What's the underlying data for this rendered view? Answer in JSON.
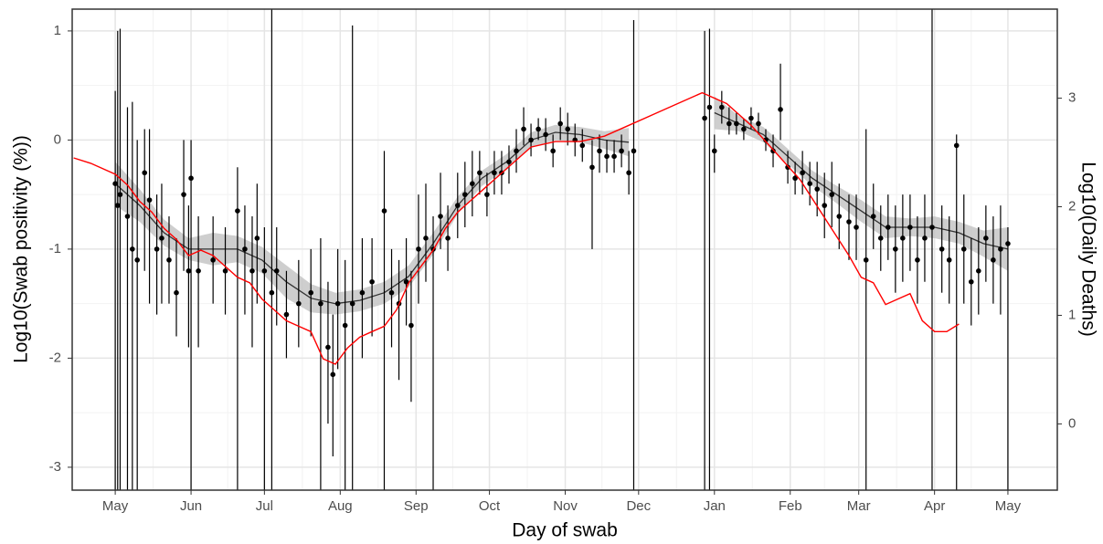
{
  "chart_data": {
    "type": "scatter",
    "x_label": "Day of swab",
    "y_label": "Log10(Swab positivity (%))",
    "y2_label": "Log10(Daily Deaths)",
    "xlim": [
      -17.6,
      385.2
    ],
    "ylim": [
      -3.21,
      1.2
    ],
    "y2lim": [
      -0.61,
      3.82
    ],
    "xticks": [
      {
        "value": 0,
        "label": "May"
      },
      {
        "value": 31,
        "label": "Jun"
      },
      {
        "value": 61,
        "label": "Jul"
      },
      {
        "value": 92,
        "label": "Aug"
      },
      {
        "value": 123,
        "label": "Sep"
      },
      {
        "value": 153,
        "label": "Oct"
      },
      {
        "value": 184,
        "label": "Nov"
      },
      {
        "value": 214,
        "label": "Dec"
      },
      {
        "value": 245,
        "label": "Jan"
      },
      {
        "value": 276,
        "label": "Feb"
      },
      {
        "value": 304,
        "label": "Mar"
      },
      {
        "value": 335,
        "label": "Apr"
      },
      {
        "value": 365,
        "label": "May"
      }
    ],
    "yticks": [
      -3,
      -2,
      -1,
      0,
      1
    ],
    "y2ticks": [
      0,
      1,
      2,
      3
    ],
    "grid": true,
    "series": [
      {
        "type": "errorbar",
        "color": "#000000",
        "x": [
          0,
          1,
          2,
          5,
          7,
          9,
          12,
          14,
          17,
          19,
          22,
          25,
          28,
          30,
          31,
          34,
          40,
          45,
          50,
          53,
          56,
          58,
          61,
          64,
          66,
          70,
          75,
          80,
          84,
          87,
          89,
          91,
          94,
          97,
          101,
          105,
          110,
          113,
          116,
          119,
          121,
          124,
          127,
          130,
          133,
          136,
          140,
          143,
          146,
          149,
          152,
          155,
          158,
          161,
          164,
          167,
          170,
          173,
          176,
          179,
          182,
          185,
          188,
          191,
          195,
          198,
          201,
          204,
          207,
          210,
          212,
          241,
          243,
          245,
          248,
          251,
          254,
          257,
          260,
          263,
          266,
          269,
          272,
          275,
          278,
          281,
          284,
          287,
          290,
          293,
          296,
          300,
          303,
          307,
          310,
          313,
          316,
          319,
          322,
          325,
          328,
          331,
          334,
          338,
          341,
          344,
          347,
          350,
          353,
          356,
          359,
          362,
          365
        ],
        "values": [
          -0.4,
          -0.6,
          -0.5,
          -0.7,
          -1.0,
          -1.1,
          -0.3,
          -0.55,
          -1.0,
          -0.9,
          -1.1,
          -1.4,
          -0.5,
          -1.2,
          -0.35,
          -1.2,
          -1.1,
          -1.2,
          -0.65,
          -1.0,
          -1.2,
          -0.9,
          -1.2,
          -1.4,
          -1.2,
          -1.6,
          -1.5,
          -1.4,
          -1.5,
          -1.9,
          -2.15,
          -1.5,
          -1.7,
          -1.5,
          -1.4,
          -1.3,
          -0.65,
          -1.4,
          -1.5,
          -1.3,
          -1.7,
          -1.0,
          -0.9,
          -1.0,
          -0.7,
          -0.9,
          -0.6,
          -0.5,
          -0.4,
          -0.3,
          -0.5,
          -0.3,
          -0.3,
          -0.2,
          -0.1,
          0.1,
          0.0,
          0.1,
          0.05,
          -0.1,
          0.15,
          0.1,
          0.0,
          -0.05,
          -0.25,
          -0.1,
          -0.15,
          -0.15,
          -0.1,
          -0.3,
          -0.1,
          0.2,
          0.3,
          -0.1,
          0.3,
          0.15,
          0.15,
          0.1,
          0.2,
          0.15,
          0.0,
          -0.1,
          0.28,
          -0.25,
          -0.35,
          -0.3,
          -0.4,
          -0.45,
          -0.6,
          -0.5,
          -0.7,
          -0.75,
          -0.8,
          -1.1,
          -0.7,
          -0.9,
          -0.8,
          -1.0,
          -0.9,
          -0.8,
          -1.1,
          -0.9,
          -0.8,
          -1.0,
          -1.1,
          -0.05,
          -1.0,
          -1.3,
          -1.2,
          -0.9,
          -1.1,
          -1.0,
          -0.95
        ],
        "lower": [
          -3.3,
          -3.3,
          -3.3,
          -3.3,
          -3.3,
          -3.3,
          -1.2,
          -1.5,
          -1.6,
          -1.5,
          -1.5,
          -1.8,
          -1.2,
          -1.9,
          -3.3,
          -1.9,
          -1.5,
          -1.6,
          -3.3,
          -1.6,
          -1.9,
          -1.5,
          -3.3,
          -3.3,
          -1.7,
          -2.0,
          -1.9,
          -1.8,
          -3.3,
          -2.6,
          -2.9,
          -2.1,
          -3.3,
          -3.3,
          -2.0,
          -1.8,
          -3.3,
          -1.9,
          -2.2,
          -1.7,
          -2.4,
          -1.5,
          -1.3,
          -3.3,
          -1.0,
          -1.2,
          -0.9,
          -0.8,
          -0.7,
          -0.5,
          -0.7,
          -0.5,
          -0.5,
          -0.4,
          -0.3,
          -0.05,
          -0.15,
          0.0,
          -0.1,
          -0.25,
          0.0,
          -0.05,
          -0.15,
          -0.2,
          -1.0,
          -0.3,
          -0.3,
          -0.3,
          -0.25,
          -0.5,
          -3.3,
          -3.3,
          -3.3,
          -0.3,
          0.15,
          0.05,
          0.05,
          0.0,
          0.1,
          0.05,
          -0.1,
          -0.25,
          0.0,
          -0.4,
          -0.5,
          -0.5,
          -0.6,
          -0.7,
          -0.9,
          -0.8,
          -1.0,
          -1.1,
          -1.1,
          -3.3,
          -1.0,
          -1.2,
          -1.1,
          -1.4,
          -1.3,
          -1.2,
          -1.5,
          -1.3,
          -3.3,
          -1.4,
          -1.5,
          -3.3,
          -1.5,
          -1.7,
          -1.6,
          -1.3,
          -1.5,
          -1.6,
          -3.3
        ],
        "upper": [
          0.45,
          1.0,
          1.02,
          0.3,
          0.35,
          0.0,
          0.1,
          0.1,
          -0.5,
          -0.4,
          -0.7,
          -0.9,
          0.0,
          -0.6,
          0.0,
          -0.7,
          -0.7,
          -0.8,
          -0.25,
          -0.6,
          -0.7,
          -0.4,
          -0.8,
          1.2,
          -0.8,
          -1.2,
          -1.1,
          -1.0,
          -0.9,
          -1.3,
          -1.6,
          -1.0,
          -1.1,
          1.05,
          -0.9,
          -0.9,
          -0.1,
          -1.0,
          -1.1,
          -0.9,
          -1.2,
          -0.5,
          -0.4,
          -0.7,
          -0.3,
          -0.6,
          -0.3,
          -0.2,
          -0.1,
          -0.1,
          -0.3,
          -0.1,
          -0.1,
          -0.05,
          0.1,
          0.3,
          0.15,
          0.2,
          0.2,
          0.05,
          0.3,
          0.25,
          0.15,
          0.1,
          0.0,
          0.05,
          0.0,
          0.0,
          0.05,
          -0.1,
          1.1,
          1.0,
          1.02,
          0.05,
          0.45,
          0.3,
          0.25,
          0.2,
          0.3,
          0.25,
          0.1,
          0.05,
          0.7,
          -0.1,
          -0.2,
          -0.1,
          -0.2,
          -0.2,
          -0.3,
          -0.2,
          -0.4,
          -0.5,
          -0.5,
          0.1,
          -0.4,
          -0.6,
          -0.5,
          -0.6,
          -0.5,
          -0.5,
          -0.7,
          -0.5,
          1.2,
          -0.6,
          -0.7,
          0.05,
          -0.5,
          -0.9,
          -0.8,
          -0.6,
          -0.7,
          -0.6,
          -0.8
        ]
      },
      {
        "type": "ribbon-line",
        "color": "#333333",
        "fill": "#bdbdbd",
        "x": [
          0,
          10,
          20,
          30,
          40,
          50,
          60,
          70,
          80,
          90,
          100,
          110,
          120,
          130,
          140,
          150,
          160,
          170,
          180,
          190,
          200,
          210,
          228,
          245,
          255,
          265,
          275,
          285,
          295,
          305,
          315,
          325,
          335,
          345,
          355,
          365
        ],
        "values": [
          -0.4,
          -0.6,
          -0.85,
          -1.0,
          -1.0,
          -1.0,
          -1.1,
          -1.3,
          -1.45,
          -1.5,
          -1.47,
          -1.4,
          -1.25,
          -0.95,
          -0.6,
          -0.35,
          -0.2,
          0.0,
          0.07,
          0.05,
          0.0,
          -0.02,
          null,
          0.25,
          0.15,
          0.05,
          -0.15,
          -0.35,
          -0.5,
          -0.65,
          -0.8,
          -0.8,
          -0.8,
          -0.85,
          -0.95,
          -1.0
        ],
        "lower": [
          -0.6,
          -0.75,
          -0.97,
          -1.1,
          -1.15,
          -1.12,
          -1.22,
          -1.45,
          -1.58,
          -1.6,
          -1.57,
          -1.5,
          -1.35,
          -1.05,
          -0.68,
          -0.42,
          -0.27,
          -0.07,
          0.0,
          -0.02,
          -0.08,
          -0.15,
          null,
          0.1,
          0.08,
          -0.02,
          -0.22,
          -0.42,
          -0.58,
          -0.75,
          -0.9,
          -0.88,
          -0.9,
          -0.95,
          -1.07,
          -1.2
        ],
        "upper": [
          -0.2,
          -0.45,
          -0.73,
          -0.9,
          -0.85,
          -0.88,
          -0.98,
          -1.15,
          -1.32,
          -1.4,
          -1.37,
          -1.3,
          -1.15,
          -0.85,
          -0.52,
          -0.28,
          -0.13,
          0.07,
          0.14,
          0.12,
          0.08,
          0.11,
          null,
          0.4,
          0.22,
          0.12,
          -0.08,
          -0.28,
          -0.42,
          -0.55,
          -0.7,
          -0.72,
          -0.7,
          -0.75,
          -0.83,
          -0.8
        ]
      },
      {
        "type": "line",
        "axis": "y2",
        "color": "#ff0000",
        "x": [
          -17,
          -10,
          0,
          5,
          10,
          15,
          20,
          25,
          30,
          35,
          40,
          45,
          50,
          55,
          60,
          65,
          70,
          75,
          80,
          85,
          90,
          95,
          100,
          105,
          110,
          115,
          120,
          125,
          130,
          135,
          140,
          150,
          160,
          170,
          180,
          190,
          200,
          210,
          220,
          230,
          240,
          250,
          260,
          270,
          280,
          290,
          300,
          305,
          310,
          315,
          320,
          325,
          330,
          335,
          340,
          345
        ],
        "values": [
          2.45,
          2.4,
          2.3,
          2.2,
          2.05,
          1.95,
          1.8,
          1.7,
          1.55,
          1.6,
          1.55,
          1.45,
          1.35,
          1.3,
          1.15,
          1.05,
          0.95,
          0.9,
          0.85,
          0.6,
          0.55,
          0.7,
          0.8,
          0.85,
          0.9,
          1.05,
          1.3,
          1.45,
          1.6,
          1.8,
          1.95,
          2.15,
          2.35,
          2.55,
          2.6,
          2.6,
          2.65,
          2.75,
          2.85,
          2.95,
          3.05,
          2.95,
          2.75,
          2.5,
          2.25,
          1.9,
          1.55,
          1.35,
          1.3,
          1.1,
          1.15,
          1.2,
          0.95,
          0.85,
          0.85,
          0.92
        ]
      }
    ]
  }
}
